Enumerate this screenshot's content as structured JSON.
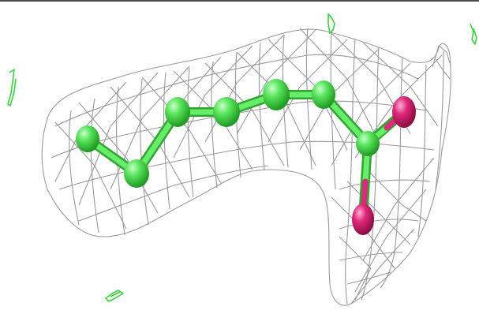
{
  "viewer": {
    "background": "#ffffff",
    "frame_color": "#4a4a4a"
  },
  "density_map": {
    "mesh_color": "#9a9a9a",
    "mesh_shade": "#c9c9c9"
  },
  "ligand": {
    "carbon_color": "#59e55c",
    "carbon_shade": "#28b32a",
    "oxygen_color": "#e0287a",
    "oxygen_shade": "#a3104d"
  },
  "noise_color": "#33d63a"
}
